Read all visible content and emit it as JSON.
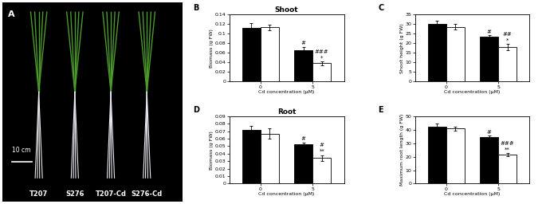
{
  "chart_data": [
    {
      "type": "photo",
      "panel": "A",
      "labels": [
        "T207",
        "S276",
        "T207-Cd",
        "S276-Cd"
      ],
      "scale_bar": "10 cm"
    },
    {
      "type": "bar",
      "panel": "B",
      "title": "Shoot",
      "x_label": "Cd concentration (μM)",
      "y_label": "Biomass (g FW)",
      "categories": [
        "0",
        "5"
      ],
      "ylim": [
        0,
        0.14
      ],
      "yticks": [
        0,
        0.02,
        0.04,
        0.06,
        0.08,
        0.1,
        0.12,
        0.14
      ],
      "series": [
        {
          "color": "#000000",
          "values": [
            0.112,
            0.065
          ],
          "errors": [
            0.01,
            0.007
          ],
          "annotations": [
            [],
            [
              "#"
            ]
          ]
        },
        {
          "color": "#ffffff",
          "values": [
            0.113,
            0.038
          ],
          "errors": [
            0.006,
            0.004
          ],
          "annotations": [
            [],
            [
              "*",
              "###"
            ]
          ]
        }
      ]
    },
    {
      "type": "bar",
      "panel": "C",
      "x_label": "Cd concentration (μM)",
      "y_label": "Shoot height (g FW)",
      "categories": [
        "0",
        "5"
      ],
      "ylim": [
        0,
        35
      ],
      "yticks": [
        0,
        5,
        10,
        15,
        20,
        25,
        30,
        35
      ],
      "series": [
        {
          "color": "#000000",
          "values": [
            30,
            23.5
          ],
          "errors": [
            1.5,
            0.5
          ],
          "annotations": [
            [],
            [
              "#"
            ]
          ]
        },
        {
          "color": "#ffffff",
          "values": [
            28.5,
            18
          ],
          "errors": [
            1.5,
            1.5
          ],
          "annotations": [
            [],
            [
              "*",
              "##"
            ]
          ]
        }
      ]
    },
    {
      "type": "bar",
      "panel": "D",
      "title": "Root",
      "x_label": "Cd concentration (μM)",
      "y_label": "Biomass (g FW)",
      "categories": [
        "0",
        "5"
      ],
      "ylim": [
        0,
        0.09
      ],
      "yticks": [
        0,
        0.01,
        0.02,
        0.03,
        0.04,
        0.05,
        0.06,
        0.07,
        0.08,
        0.09
      ],
      "series": [
        {
          "color": "#000000",
          "values": [
            0.072,
            0.053
          ],
          "errors": [
            0.005,
            0.002
          ],
          "annotations": [
            [],
            [
              "#"
            ]
          ]
        },
        {
          "color": "#ffffff",
          "values": [
            0.067,
            0.034
          ],
          "errors": [
            0.007,
            0.004
          ],
          "annotations": [
            [],
            [
              "**",
              "#"
            ]
          ]
        }
      ]
    },
    {
      "type": "bar",
      "panel": "E",
      "x_label": "Cd concentration (μM)",
      "y_label": "Maximum root length (g FW)",
      "categories": [
        "0",
        "5"
      ],
      "ylim": [
        0,
        50
      ],
      "yticks": [
        0,
        10,
        20,
        30,
        40,
        50
      ],
      "series": [
        {
          "color": "#000000",
          "values": [
            42.5,
            34.5
          ],
          "errors": [
            2,
            1
          ],
          "annotations": [
            [],
            [
              "#"
            ]
          ]
        },
        {
          "color": "#ffffff",
          "values": [
            41,
            21.5
          ],
          "errors": [
            1.5,
            1
          ],
          "annotations": [
            [],
            [
              "**",
              "###"
            ]
          ]
        }
      ]
    }
  ]
}
